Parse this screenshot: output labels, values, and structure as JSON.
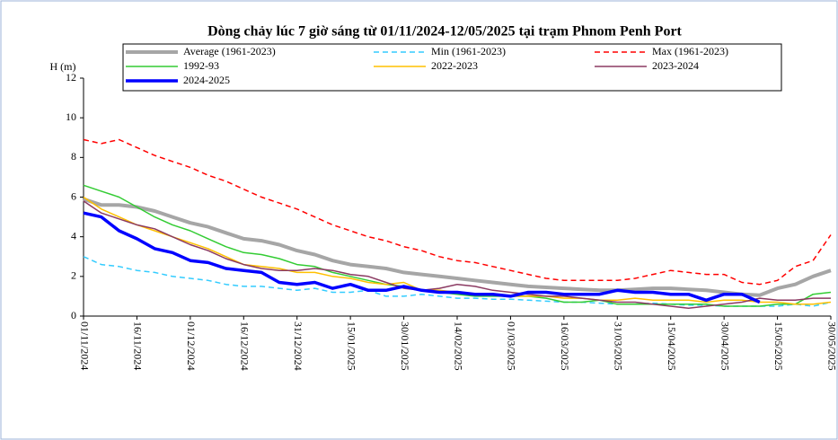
{
  "chart_data": {
    "type": "line",
    "title": "Dòng chảy lúc 7 giờ sáng từ 01/11/2024-12/05/2025 tại trạm Phnom Penh Port",
    "y_label": "H (m)",
    "x": [
      "01/11/2024",
      "06/11/2024",
      "11/11/2024",
      "16/11/2024",
      "21/11/2024",
      "26/11/2024",
      "01/12/2024",
      "06/12/2024",
      "11/12/2024",
      "16/12/2024",
      "21/12/2024",
      "26/12/2024",
      "31/12/2024",
      "05/01/2025",
      "10/01/2025",
      "15/01/2025",
      "20/01/2025",
      "25/01/2025",
      "30/01/2025",
      "04/02/2025",
      "09/02/2025",
      "14/02/2025",
      "19/02/2025",
      "24/02/2025",
      "01/03/2025",
      "06/03/2025",
      "11/03/2025",
      "16/03/2025",
      "21/03/2025",
      "26/03/2025",
      "31/03/2025",
      "05/04/2025",
      "10/04/2025",
      "15/04/2025",
      "20/04/2025",
      "25/04/2025",
      "30/04/2025",
      "05/05/2025",
      "10/05/2025",
      "15/05/2025",
      "20/05/2025",
      "25/05/2025",
      "30/05/2025"
    ],
    "xlim": [
      "01/11/2024",
      "30/05/2025"
    ],
    "xticks": [
      "01/11/2024",
      "16/11/2024",
      "01/12/2024",
      "16/12/2024",
      "31/12/2024",
      "15/01/2025",
      "30/01/2025",
      "14/02/2025",
      "01/03/2025",
      "16/03/2025",
      "31/03/2025",
      "15/04/2025",
      "30/04/2025",
      "15/05/2025",
      "30/05/2025"
    ],
    "ylim": [
      0,
      12
    ],
    "yticks": [
      0,
      2,
      4,
      6,
      8,
      10,
      12
    ],
    "series": [
      {
        "name": "Average (1961-2023)",
        "color": "#a6a6a6",
        "width": 4,
        "dashed": false,
        "values": [
          5.9,
          5.6,
          5.6,
          5.5,
          5.3,
          5.0,
          4.7,
          4.5,
          4.2,
          3.9,
          3.8,
          3.6,
          3.3,
          3.1,
          2.8,
          2.6,
          2.5,
          2.4,
          2.2,
          2.1,
          2.0,
          1.9,
          1.8,
          1.7,
          1.6,
          1.5,
          1.45,
          1.4,
          1.35,
          1.3,
          1.3,
          1.35,
          1.4,
          1.4,
          1.35,
          1.3,
          1.2,
          1.1,
          1.05,
          1.4,
          1.6,
          2.0,
          2.3
        ]
      },
      {
        "name": "Min (1961-2023)",
        "color": "#33ccff",
        "width": 1.5,
        "dashed": true,
        "values": [
          3.0,
          2.6,
          2.5,
          2.3,
          2.2,
          2.0,
          1.9,
          1.8,
          1.6,
          1.5,
          1.5,
          1.4,
          1.3,
          1.4,
          1.2,
          1.2,
          1.3,
          1.0,
          1.0,
          1.1,
          1.0,
          0.9,
          0.9,
          0.85,
          0.85,
          0.8,
          0.75,
          0.7,
          0.7,
          0.65,
          0.6,
          0.6,
          0.65,
          0.6,
          0.55,
          0.55,
          0.5,
          0.5,
          0.5,
          0.5,
          0.6,
          0.5,
          0.7
        ]
      },
      {
        "name": "Max (1961-2023)",
        "color": "#ff0000",
        "width": 1.5,
        "dashed": true,
        "values": [
          8.9,
          8.7,
          8.9,
          8.5,
          8.1,
          7.8,
          7.5,
          7.1,
          6.8,
          6.4,
          6.0,
          5.7,
          5.4,
          5.0,
          4.6,
          4.3,
          4.0,
          3.8,
          3.5,
          3.3,
          3.0,
          2.8,
          2.7,
          2.5,
          2.3,
          2.1,
          1.9,
          1.8,
          1.8,
          1.8,
          1.8,
          1.9,
          2.1,
          2.3,
          2.2,
          2.1,
          2.1,
          1.7,
          1.6,
          1.8,
          2.5,
          2.8,
          4.1
        ]
      },
      {
        "name": "1992-93",
        "color": "#33cc33",
        "width": 1.5,
        "dashed": false,
        "values": [
          6.6,
          6.3,
          6.0,
          5.5,
          5.0,
          4.6,
          4.3,
          3.9,
          3.5,
          3.2,
          3.1,
          2.9,
          2.6,
          2.5,
          2.2,
          2.0,
          1.8,
          1.6,
          1.5,
          1.3,
          1.2,
          1.1,
          1.0,
          1.0,
          1.0,
          1.0,
          0.9,
          0.7,
          0.7,
          0.8,
          0.6,
          0.6,
          0.6,
          0.6,
          0.6,
          0.6,
          0.5,
          0.5,
          0.5,
          0.6,
          0.6,
          1.1,
          1.2
        ]
      },
      {
        "name": "2022-2023",
        "color": "#ffc000",
        "width": 1.5,
        "dashed": false,
        "values": [
          6.0,
          5.4,
          5.0,
          4.6,
          4.3,
          4.0,
          3.7,
          3.4,
          3.0,
          2.6,
          2.5,
          2.4,
          2.2,
          2.2,
          2.0,
          1.9,
          1.7,
          1.6,
          1.7,
          1.3,
          1.3,
          1.2,
          1.1,
          1.1,
          1.0,
          1.0,
          1.0,
          0.9,
          0.9,
          0.8,
          0.8,
          0.9,
          0.8,
          0.8,
          0.8,
          0.7,
          0.8,
          0.8,
          0.7,
          0.7,
          0.6,
          0.6,
          0.7
        ]
      },
      {
        "name": "2023-2024",
        "color": "#8b3a62",
        "width": 1.5,
        "dashed": false,
        "values": [
          5.8,
          5.2,
          4.9,
          4.6,
          4.4,
          4.0,
          3.6,
          3.3,
          2.9,
          2.6,
          2.4,
          2.3,
          2.3,
          2.4,
          2.3,
          2.1,
          2.0,
          1.7,
          1.4,
          1.3,
          1.4,
          1.6,
          1.5,
          1.3,
          1.2,
          1.1,
          1.0,
          1.0,
          0.9,
          0.8,
          0.7,
          0.7,
          0.6,
          0.5,
          0.4,
          0.5,
          0.6,
          0.7,
          0.9,
          0.8,
          0.8,
          0.9,
          0.9
        ]
      },
      {
        "name": "2024-2025",
        "color": "#0000ff",
        "width": 3.5,
        "dashed": false,
        "values": [
          5.2,
          5.0,
          4.3,
          3.9,
          3.4,
          3.2,
          2.8,
          2.7,
          2.4,
          2.3,
          2.2,
          1.7,
          1.6,
          1.7,
          1.4,
          1.6,
          1.3,
          1.3,
          1.5,
          1.3,
          1.2,
          1.2,
          1.1,
          1.1,
          1.0,
          1.2,
          1.2,
          1.1,
          1.1,
          1.1,
          1.3,
          1.2,
          1.2,
          1.1,
          1.1,
          0.8,
          1.1,
          1.1,
          0.7,
          null,
          null,
          null,
          null
        ]
      }
    ]
  }
}
